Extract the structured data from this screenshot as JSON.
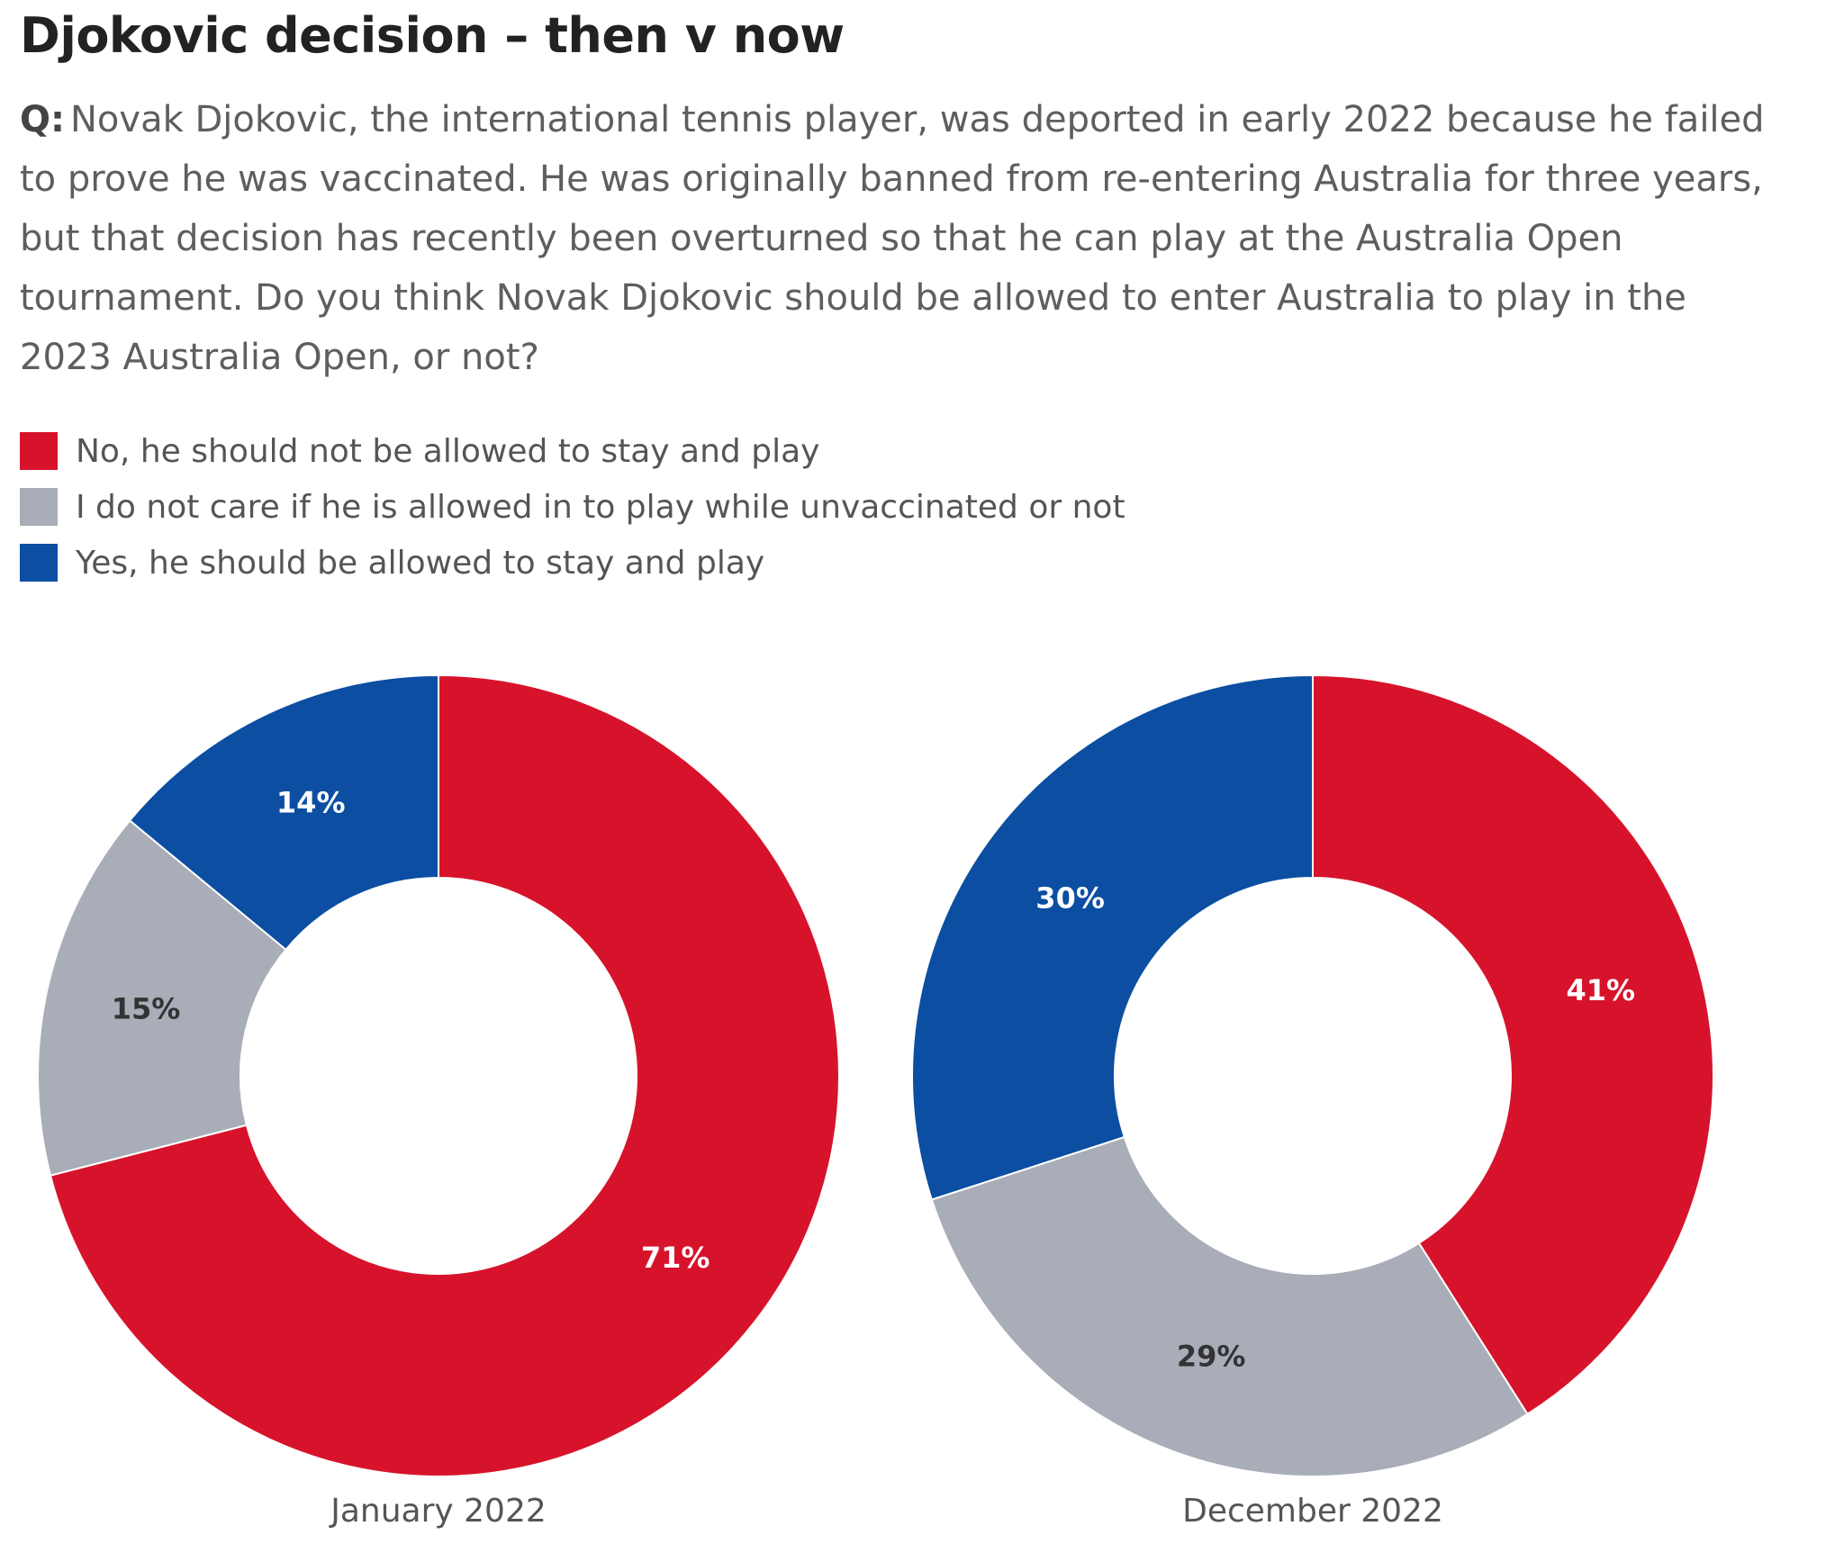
{
  "header": {
    "title": "Djokovic decision – then v now",
    "question_prefix": "Q:",
    "question_text": "Novak Djokovic, the international tennis player, was deported in early 2022 because he failed to prove he was vaccinated. He was originally banned from re-entering Australia for three years, but that decision has recently been overturned so that he can play at the Australia Open tournament. Do you think Novak Djokovic should be allowed to enter Australia to play in the 2023 Australia Open, or not?"
  },
  "legend": [
    {
      "label": "No, he should not be allowed to stay and play",
      "color": "#d7132b"
    },
    {
      "label": "I do not care if he is allowed in to play while unvaccinated or not",
      "color": "#a8adb8"
    },
    {
      "label": "Yes, he should be allowed to stay and play",
      "color": "#0b4ea2"
    }
  ],
  "chart_data": [
    {
      "type": "pie",
      "title": "January 2022",
      "categories": [
        "No, he should not be allowed to stay and play",
        "I do not care if he is allowed in to play while unvaccinated or not",
        "Yes, he should be allowed to stay and play"
      ],
      "values": [
        71,
        15,
        14
      ],
      "labels": [
        "71%",
        "15%",
        "14%"
      ],
      "colors": [
        "#d7132b",
        "#a8adb8",
        "#0b4ea2"
      ],
      "label_colors": [
        "#ffffff",
        "#333333",
        "#ffffff"
      ]
    },
    {
      "type": "pie",
      "title": "December 2022",
      "categories": [
        "No, he should not be allowed to stay and play",
        "I do not care if he is allowed in to play while unvaccinated or not",
        "Yes, he should be allowed to stay and play"
      ],
      "values": [
        41,
        29,
        30
      ],
      "labels": [
        "41%",
        "29%",
        "30%"
      ],
      "colors": [
        "#d7132b",
        "#a8adb8",
        "#0b4ea2"
      ],
      "label_colors": [
        "#ffffff",
        "#333333",
        "#ffffff"
      ]
    }
  ]
}
